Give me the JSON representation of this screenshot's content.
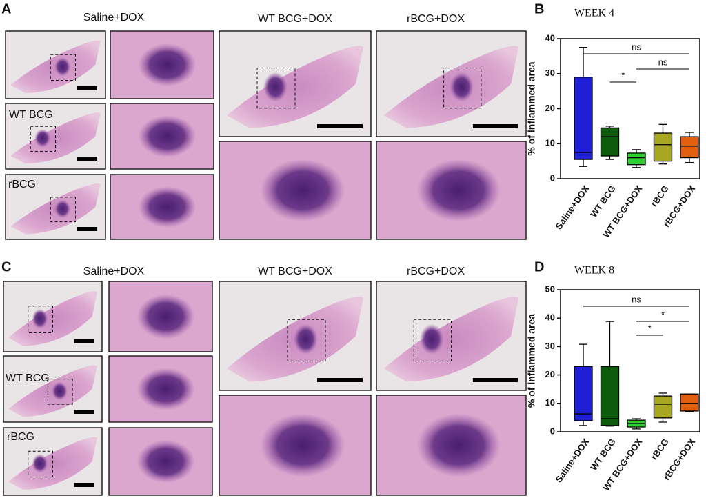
{
  "panels": {
    "A": {
      "label": "A",
      "headers": [
        "Saline+DOX",
        "WT BCG+DOX",
        "rBCG+DOX"
      ],
      "row_labels": [
        "WT BCG",
        "rBCG"
      ]
    },
    "C": {
      "label": "C",
      "headers": [
        "Saline+DOX",
        "WT BCG+DOX",
        "rBCG+DOX"
      ],
      "row_labels": [
        "WT BCG",
        "rBCG"
      ]
    }
  },
  "chart_data": [
    {
      "type": "box",
      "panel_label": "B",
      "title": "WEEK 4",
      "y_label": "% of inflammed area",
      "categories": [
        "Saline+DOX",
        "WT BCG",
        "WT BCG+DOX",
        "rBCG",
        "rBCG+DOX"
      ],
      "boxes": [
        {
          "min": 3.5,
          "q1": 5.5,
          "median": 7.5,
          "q3": 29,
          "max": 37.5,
          "color": "#1f1fd6"
        },
        {
          "min": 5.5,
          "q1": 6.5,
          "median": 12,
          "q3": 14.5,
          "max": 15,
          "color": "#0d5c0d"
        },
        {
          "min": 3.2,
          "q1": 4,
          "median": 6,
          "q3": 7.3,
          "max": 8.3,
          "color": "#33cc33"
        },
        {
          "min": 4.2,
          "q1": 5,
          "median": 9.7,
          "q3": 13,
          "max": 15.5,
          "color": "#a8a820"
        },
        {
          "min": 4.6,
          "q1": 6,
          "median": 9.3,
          "q3": 12,
          "max": 13.2,
          "color": "#e0600f"
        }
      ],
      "annotations": [
        {
          "text": "ns",
          "from": "Saline+DOX",
          "to": "rBCG+DOX"
        },
        {
          "text": "ns",
          "from": "WT BCG+DOX",
          "to": "rBCG+DOX"
        },
        {
          "text": "*",
          "from": "WT BCG",
          "to": "WT BCG+DOX"
        }
      ],
      "ylim": [
        0,
        40
      ],
      "yticks": [
        0,
        10,
        20,
        30,
        40
      ]
    },
    {
      "type": "box",
      "panel_label": "D",
      "title": "WEEK 8",
      "y_label": "% of inflammed area",
      "categories": [
        "Saline+DOX",
        "WT BCG",
        "WT BCG+DOX",
        "rBCG",
        "rBCG+DOX"
      ],
      "boxes": [
        {
          "min": 2.2,
          "q1": 3.9,
          "median": 6.3,
          "q3": 23,
          "max": 30.8,
          "color": "#1f1fd6"
        },
        {
          "min": 2,
          "q1": 2.2,
          "median": 4.6,
          "q3": 23,
          "max": 38.8,
          "color": "#0d5c0d"
        },
        {
          "min": 1,
          "q1": 1.7,
          "median": 2.9,
          "q3": 4.1,
          "max": 4.6,
          "color": "#33cc33"
        },
        {
          "min": 3.4,
          "q1": 4.9,
          "median": 9.7,
          "q3": 12.6,
          "max": 13.6,
          "color": "#a8a820"
        },
        {
          "min": 7,
          "q1": 7.3,
          "median": 10,
          "q3": 13.3,
          "max": 13.3,
          "color": "#e0600f"
        }
      ],
      "annotations": [
        {
          "text": "ns",
          "from": "Saline+DOX",
          "to": "rBCG+DOX"
        },
        {
          "text": "*",
          "from": "WT BCG+DOX",
          "to": "rBCG+DOX"
        },
        {
          "text": "*",
          "from": "WT BCG+DOX",
          "to": "rBCG"
        }
      ],
      "ylim": [
        0,
        50
      ],
      "yticks": [
        0,
        10,
        20,
        30,
        40,
        50
      ]
    }
  ]
}
